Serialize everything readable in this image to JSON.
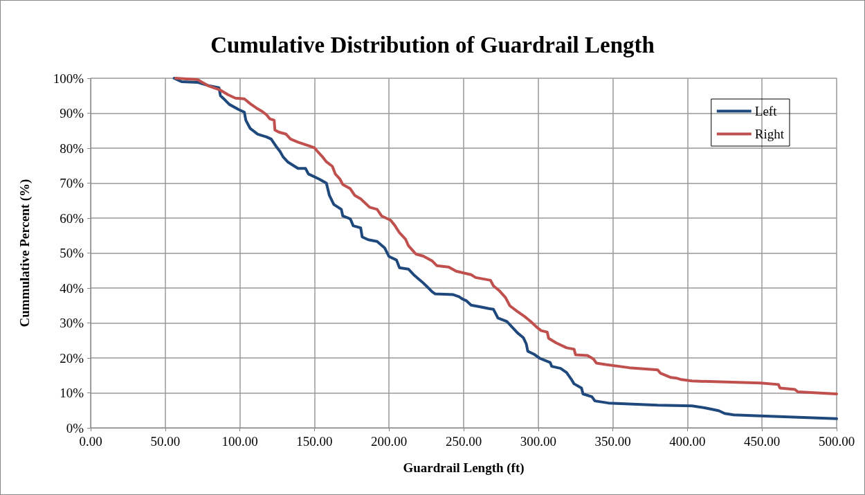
{
  "chart_data": {
    "type": "line",
    "title": "Cumulative Distribution of Guardrail Length",
    "xlabel": "Guardrail Length (ft)",
    "ylabel": "Cummulative Percent (%)",
    "xlim": [
      0,
      500
    ],
    "xticks": [
      {
        "value": 0,
        "label": "0.00"
      },
      {
        "value": 50,
        "label": "50.00"
      },
      {
        "value": 100,
        "label": "100.00"
      },
      {
        "value": 150,
        "label": "150.00"
      },
      {
        "value": 200,
        "label": "200.00"
      },
      {
        "value": 250,
        "label": "250.00"
      },
      {
        "value": 300,
        "label": "300.00"
      },
      {
        "value": 350,
        "label": "350.00"
      },
      {
        "value": 400,
        "label": "400.00"
      },
      {
        "value": 450,
        "label": "450.00"
      },
      {
        "value": 500,
        "label": "500.00"
      }
    ],
    "ylim": [
      0,
      100
    ],
    "yticks": [
      {
        "value": 0,
        "label": "0%"
      },
      {
        "value": 10,
        "label": "10%"
      },
      {
        "value": 20,
        "label": "20%"
      },
      {
        "value": 30,
        "label": "30%"
      },
      {
        "value": 40,
        "label": "40%"
      },
      {
        "value": 50,
        "label": "50%"
      },
      {
        "value": 60,
        "label": "60%"
      },
      {
        "value": 70,
        "label": "70%"
      },
      {
        "value": 80,
        "label": "80%"
      },
      {
        "value": 90,
        "label": "90%"
      },
      {
        "value": 100,
        "label": "100%"
      }
    ],
    "grid": true,
    "legend": "top right",
    "marker": "none",
    "line_style": "solid",
    "series": [
      {
        "name": "Left",
        "color": "#1f497d",
        "x": [
          56,
          61,
          72,
          79,
          86,
          87,
          90,
          93,
          99,
          103,
          104,
          107,
          112,
          118,
          121,
          124,
          127,
          129,
          132,
          136,
          139,
          144,
          146,
          153,
          158,
          160,
          163,
          168,
          169,
          174,
          176,
          181,
          182,
          186,
          192,
          197,
          200,
          205,
          207,
          213,
          217,
          222,
          225,
          229,
          231,
          243,
          247,
          249,
          252,
          255,
          260,
          267,
          270,
          273,
          279,
          283,
          286,
          290,
          292,
          293,
          297,
          301,
          308,
          309,
          315,
          319,
          322,
          324,
          329,
          330,
          336,
          338,
          347,
          380,
          403,
          412,
          421,
          425,
          431,
          449,
          500
        ],
        "values": [
          100,
          99,
          98.8,
          97.9,
          97.3,
          95,
          93.8,
          92.5,
          91.1,
          90.3,
          88,
          85.6,
          84,
          83.2,
          82.6,
          80.7,
          79,
          77.5,
          76.1,
          75,
          74.2,
          74.2,
          72.6,
          71.2,
          70,
          66.5,
          63.9,
          62.5,
          60.6,
          59.8,
          57.8,
          57.2,
          54.6,
          53.8,
          53.3,
          51.5,
          49,
          48,
          45.8,
          45.4,
          43.6,
          41.8,
          40.6,
          38.9,
          38.3,
          38.1,
          37.5,
          36.9,
          36.3,
          35.1,
          34.7,
          34.1,
          33.9,
          31.4,
          30.4,
          28.6,
          27.2,
          25.8,
          24,
          21.9,
          21.1,
          19.9,
          18.7,
          17.6,
          17,
          15.8,
          14,
          12.6,
          11.4,
          9.7,
          8.9,
          7.7,
          7.1,
          6.5,
          6.3,
          5.7,
          4.9,
          4.1,
          3.7,
          3.4,
          2.6
        ]
      },
      {
        "name": "Right",
        "color": "#c0504d",
        "x": [
          57,
          72,
          74,
          79,
          87,
          92,
          97,
          103,
          107,
          111,
          115,
          118,
          120,
          123,
          123.5,
          126,
          131,
          134,
          139,
          146,
          150,
          152,
          155,
          158,
          162,
          164,
          167,
          169,
          174,
          177,
          181,
          187,
          192,
          195,
          201,
          204,
          207,
          211,
          213,
          218,
          223,
          229,
          232,
          240,
          245,
          255,
          258,
          268,
          270,
          274,
          278,
          281,
          286,
          291,
          295,
          299,
          302,
          306,
          307,
          312,
          319,
          324,
          325,
          333,
          337,
          339,
          345,
          361,
          380,
          382,
          389,
          393,
          396,
          403,
          449,
          461,
          462,
          472,
          474,
          500
        ],
        "values": [
          100,
          99.6,
          99,
          97.8,
          96.6,
          95.3,
          94.3,
          94.1,
          92.7,
          91.5,
          90.5,
          89.5,
          88.4,
          88,
          85.2,
          84.6,
          84,
          82.6,
          81.7,
          80.7,
          80.1,
          79.1,
          77.7,
          76.1,
          74.8,
          72.6,
          71.2,
          69.6,
          68.4,
          66.5,
          65.5,
          63.1,
          62.5,
          60.6,
          59.4,
          57.8,
          55.8,
          54,
          52.1,
          49.7,
          49.1,
          47.7,
          46.4,
          46,
          44.8,
          43.8,
          43,
          42.2,
          40.6,
          39.2,
          37.3,
          34.9,
          33.3,
          31.8,
          30.4,
          28.8,
          27.8,
          27.4,
          25.6,
          24.3,
          22.9,
          22.5,
          20.9,
          20.7,
          19.7,
          18.5,
          18.1,
          17.2,
          16.6,
          15.6,
          14.4,
          14.2,
          13.8,
          13.4,
          12.8,
          12.4,
          11.4,
          11,
          10.3,
          9.7
        ]
      }
    ]
  }
}
